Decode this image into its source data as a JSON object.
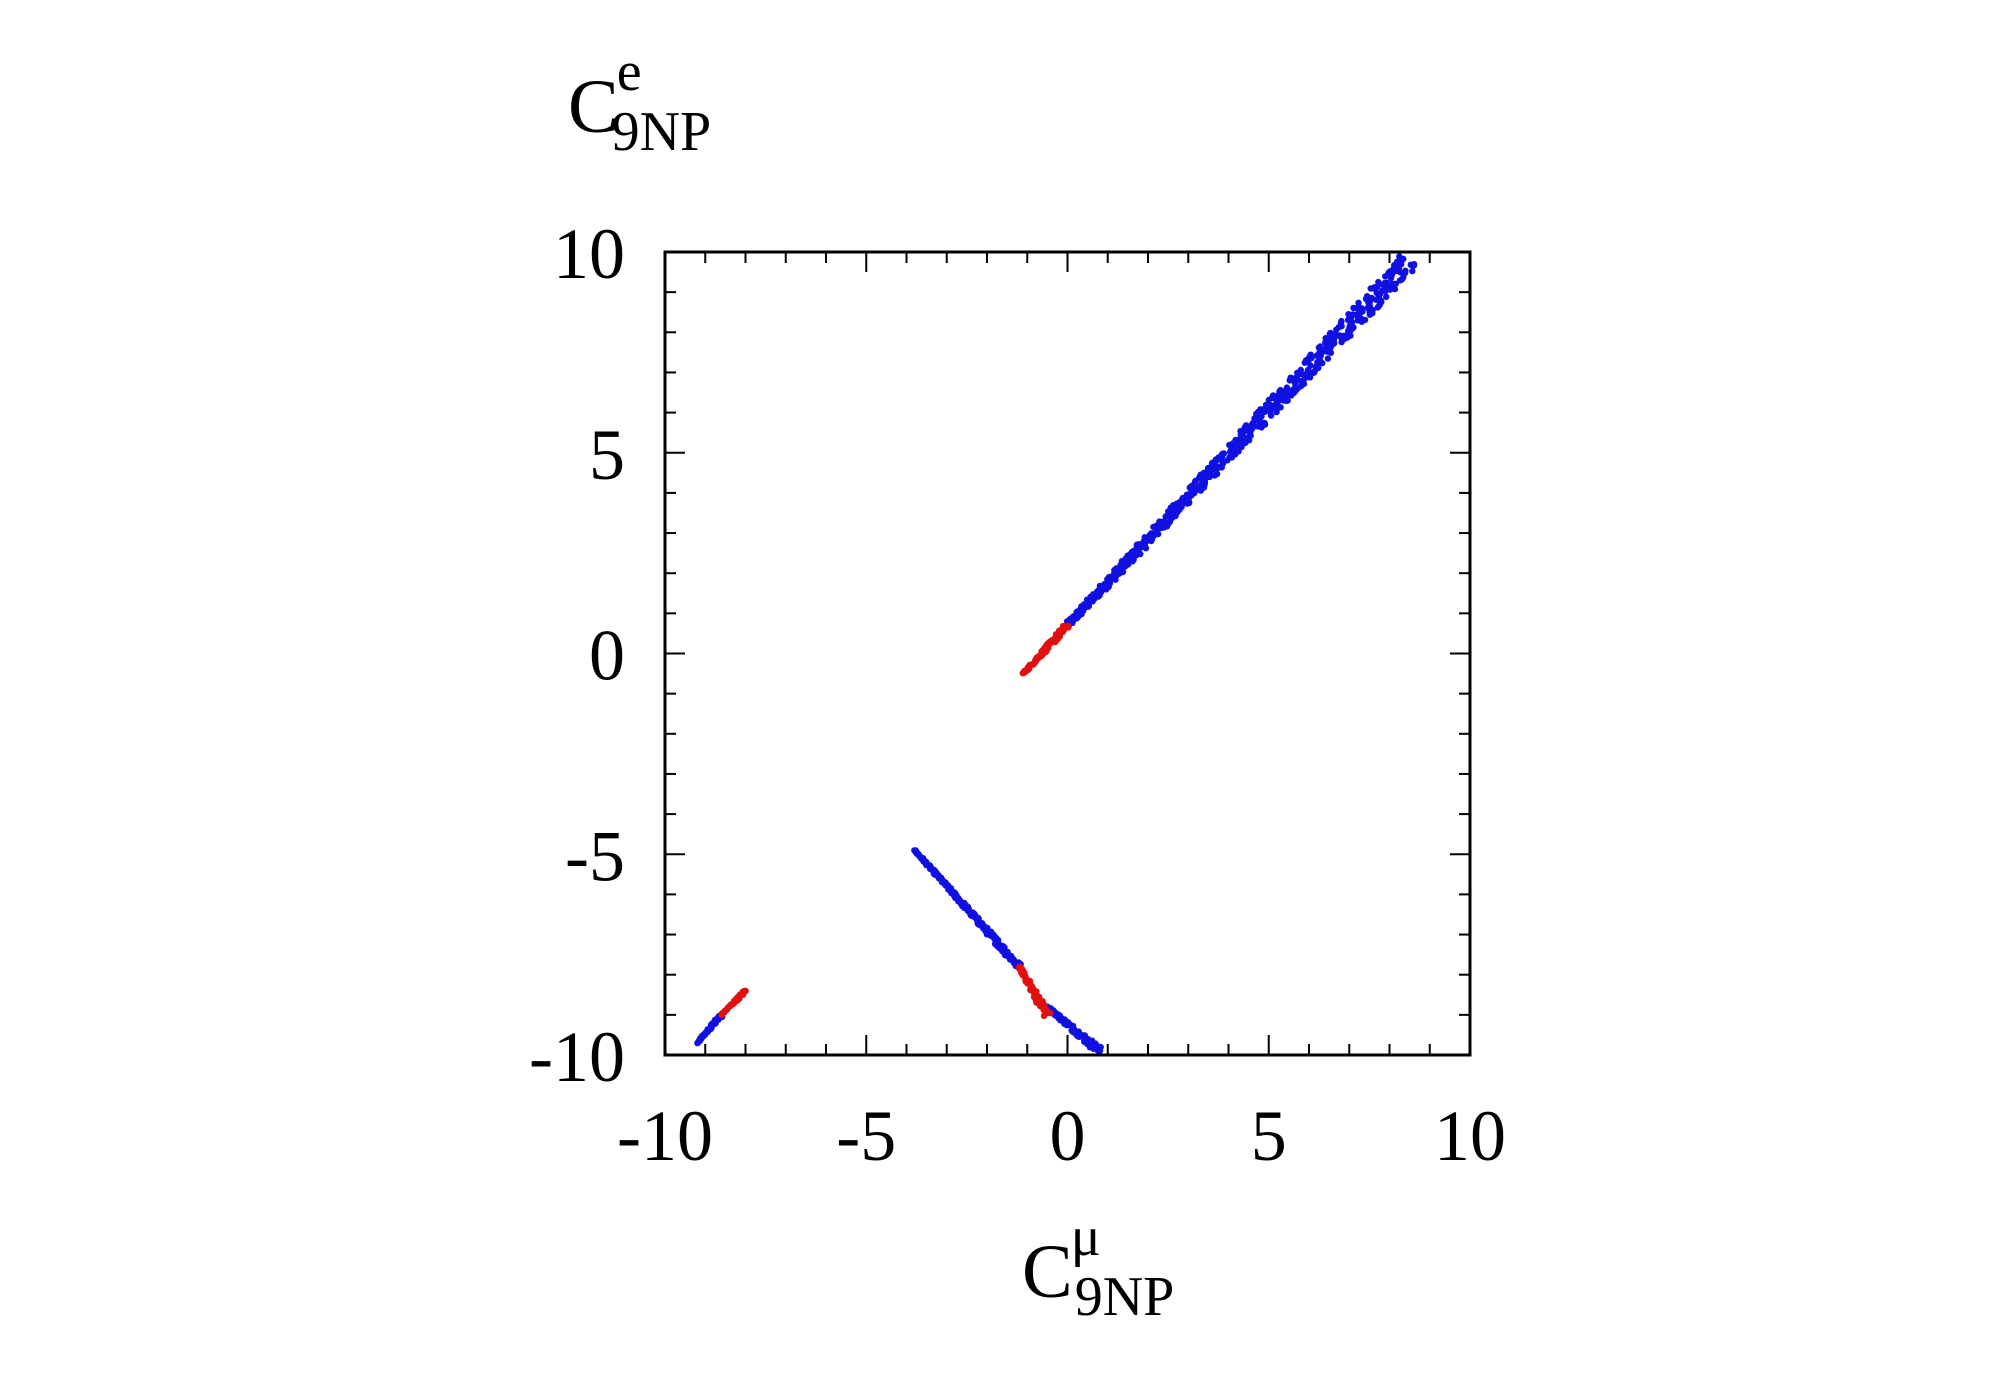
{
  "chart_data": {
    "type": "scatter",
    "xlabel": {
      "base": "C",
      "sub": "9NP",
      "sup": "μ"
    },
    "ylabel": {
      "base": "C",
      "sub": "9NP",
      "sup": "e"
    },
    "xlim": [
      -10,
      10
    ],
    "ylim": [
      -10,
      10
    ],
    "xticks": [
      -10,
      -5,
      0,
      5,
      10
    ],
    "yticks": [
      -10,
      -5,
      0,
      5,
      10
    ],
    "grid": false,
    "colors": {
      "blue": "#1010e0",
      "red": "#e01010"
    },
    "series": [
      {
        "color": "blue",
        "segments": [
          {
            "from": [
              0.0,
              0.7
            ],
            "to": [
              8.5,
              9.8
            ],
            "spread": 0.25
          },
          {
            "from": [
              -3.8,
              -4.9
            ],
            "to": [
              -1.2,
              -7.8
            ],
            "spread": 0.08
          },
          {
            "from": [
              -0.5,
              -8.8
            ],
            "to": [
              0.8,
              -9.9
            ],
            "spread": 0.1
          },
          {
            "from": [
              -9.2,
              -9.7
            ],
            "to": [
              -8.6,
              -9.0
            ],
            "spread": 0.05
          }
        ]
      },
      {
        "color": "red",
        "segments": [
          {
            "from": [
              -1.1,
              -0.5
            ],
            "to": [
              0.0,
              0.7
            ],
            "spread": 0.08
          },
          {
            "from": [
              -1.2,
              -7.8
            ],
            "to": [
              -0.5,
              -9.0
            ],
            "spread": 0.1
          },
          {
            "from": [
              -8.6,
              -9.0
            ],
            "to": [
              -8.0,
              -8.4
            ],
            "spread": 0.04
          }
        ]
      }
    ]
  }
}
